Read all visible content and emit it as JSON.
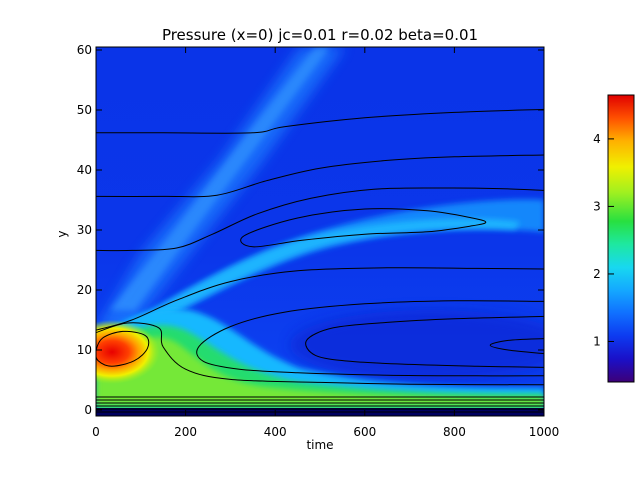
{
  "chart_data": {
    "type": "heatmap",
    "title": "Pressure (x=0) jc=0.01 r=0.02 beta=0.01",
    "xlabel": "time",
    "ylabel": "y",
    "xlim": [
      0,
      1000
    ],
    "ylim": [
      -1,
      60.5
    ],
    "xticks": [
      "0",
      "200",
      "400",
      "600",
      "800",
      "1000"
    ],
    "yticks": [
      "0",
      "10",
      "20",
      "30",
      "40",
      "50",
      "60"
    ],
    "xtick_values": [
      0,
      200,
      400,
      600,
      800,
      1000
    ],
    "ytick_values": [
      0,
      10,
      20,
      30,
      40,
      50,
      60
    ],
    "colorbar": {
      "range": [
        0.4,
        4.65
      ],
      "ticks": [
        "1",
        "2",
        "3",
        "4"
      ],
      "tick_values": [
        1,
        2,
        3,
        4
      ],
      "colormap": [
        "#3d0078",
        "#1a10c8",
        "#0d3af0",
        "#1070ff",
        "#14a8ff",
        "#18d8f0",
        "#1ee8a0",
        "#28e040",
        "#a0f020",
        "#f0f000",
        "#ffb000",
        "#ff5000",
        "#e00000"
      ]
    },
    "contour_lines": [
      {
        "level": "outer-1",
        "points": [
          [
            0,
            46.2
          ],
          [
            150,
            46.2
          ],
          [
            350,
            46.2
          ],
          [
            420,
            47.2
          ],
          [
            600,
            48.7
          ],
          [
            800,
            49.6
          ],
          [
            1000,
            50.1
          ]
        ]
      },
      {
        "level": "outer-2",
        "points": [
          [
            0,
            35.6
          ],
          [
            150,
            35.6
          ],
          [
            270,
            35.8
          ],
          [
            380,
            38.2
          ],
          [
            500,
            40.3
          ],
          [
            650,
            41.6
          ],
          [
            800,
            42.2
          ],
          [
            1000,
            42.5
          ]
        ]
      },
      {
        "level": "outer-3",
        "points": [
          [
            0,
            26.6
          ],
          [
            80,
            26.6
          ],
          [
            180,
            27.0
          ],
          [
            260,
            29.3
          ],
          [
            360,
            32.7
          ],
          [
            480,
            35.3
          ],
          [
            620,
            36.8
          ],
          [
            780,
            37.0
          ],
          [
            900,
            36.9
          ],
          [
            1000,
            36.6
          ]
        ]
      },
      {
        "level": "band-closed",
        "closed": true,
        "points": [
          [
            330,
            29.0
          ],
          [
            450,
            32.0
          ],
          [
            600,
            33.5
          ],
          [
            740,
            33.2
          ],
          [
            840,
            32.0
          ],
          [
            870,
            31.3
          ],
          [
            840,
            30.7
          ],
          [
            740,
            29.7
          ],
          [
            600,
            29.3
          ],
          [
            460,
            28.3
          ],
          [
            350,
            27.2
          ]
        ]
      },
      {
        "level": "mid-1",
        "points": [
          [
            0,
            13.3
          ],
          [
            80,
            15.0
          ],
          [
            180,
            18.3
          ],
          [
            300,
            21.4
          ],
          [
            450,
            23.2
          ],
          [
            650,
            23.7
          ],
          [
            850,
            23.6
          ],
          [
            1000,
            23.5
          ]
        ]
      },
      {
        "level": "mid-2",
        "points": [
          [
            1000,
            18.1
          ],
          [
            800,
            18.2
          ],
          [
            600,
            17.7
          ],
          [
            420,
            16.3
          ],
          [
            300,
            13.9
          ],
          [
            230,
            10.6
          ],
          [
            240,
            8.1
          ],
          [
            320,
            6.8
          ],
          [
            450,
            6.2
          ],
          [
            650,
            5.8
          ],
          [
            850,
            5.7
          ],
          [
            1000,
            5.7
          ]
        ]
      },
      {
        "level": "mid-3",
        "points": [
          [
            1000,
            15.6
          ],
          [
            800,
            15.2
          ],
          [
            650,
            14.6
          ],
          [
            530,
            13.7
          ],
          [
            470,
            11.6
          ],
          [
            490,
            9.1
          ],
          [
            570,
            8.1
          ],
          [
            700,
            7.6
          ],
          [
            850,
            7.3
          ],
          [
            1000,
            7.1
          ]
        ]
      },
      {
        "level": "hot-1",
        "points": [
          [
            1000,
            11.9
          ],
          [
            920,
            11.6
          ],
          [
            880,
            10.8
          ],
          [
            920,
            10.0
          ],
          [
            1000,
            9.4
          ]
        ]
      },
      {
        "level": "peak-2",
        "closed": true,
        "points": [
          [
            0,
            9.8
          ],
          [
            15,
            12.0
          ],
          [
            60,
            13.1
          ],
          [
            110,
            12.4
          ],
          [
            115,
            10.3
          ],
          [
            85,
            8.2
          ],
          [
            35,
            7.3
          ],
          [
            5,
            8.2
          ]
        ]
      },
      {
        "level": "peak-1",
        "points": [
          [
            0,
            12.9
          ],
          [
            70,
            14.5
          ],
          [
            140,
            13.7
          ],
          [
            150,
            10.5
          ],
          [
            200,
            6.8
          ],
          [
            300,
            5.1
          ],
          [
            500,
            4.6
          ],
          [
            700,
            4.3
          ],
          [
            1000,
            4.2
          ]
        ]
      }
    ]
  }
}
